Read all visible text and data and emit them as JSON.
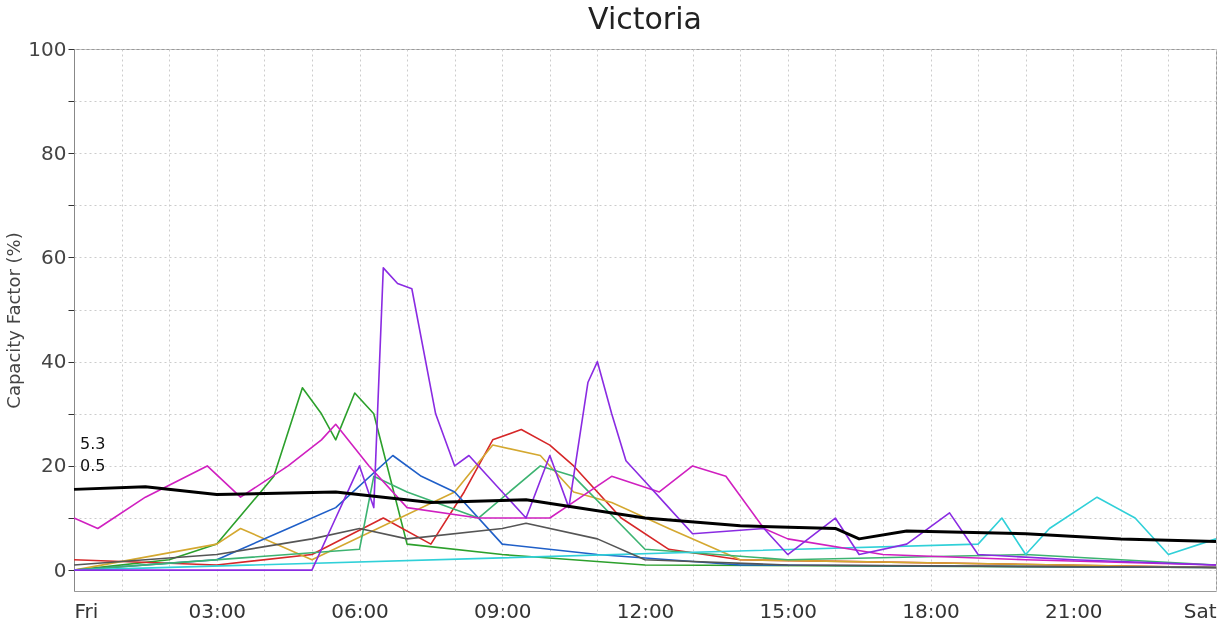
{
  "chart_data": {
    "type": "line",
    "title": "Victoria",
    "ylabel": "Capacity Factor (%)",
    "xlim": [
      0,
      24
    ],
    "xticks": [
      {
        "value": 0,
        "label": "Fri"
      },
      {
        "value": 1,
        "label": null
      },
      {
        "value": 2,
        "label": null
      },
      {
        "value": 3,
        "label": "03:00"
      },
      {
        "value": 4,
        "label": null
      },
      {
        "value": 5,
        "label": null
      },
      {
        "value": 6,
        "label": "06:00"
      },
      {
        "value": 7,
        "label": null
      },
      {
        "value": 8,
        "label": null
      },
      {
        "value": 9,
        "label": "09:00"
      },
      {
        "value": 10,
        "label": null
      },
      {
        "value": 11,
        "label": null
      },
      {
        "value": 12,
        "label": "12:00"
      },
      {
        "value": 13,
        "label": null
      },
      {
        "value": 14,
        "label": null
      },
      {
        "value": 15,
        "label": "15:00"
      },
      {
        "value": 16,
        "label": null
      },
      {
        "value": 17,
        "label": null
      },
      {
        "value": 18,
        "label": "18:00"
      },
      {
        "value": 19,
        "label": null
      },
      {
        "value": 20,
        "label": null
      },
      {
        "value": 21,
        "label": "21:00"
      },
      {
        "value": 22,
        "label": null
      },
      {
        "value": 23,
        "label": null
      },
      {
        "value": 24,
        "label": "Sat"
      }
    ],
    "ylim": [
      -4,
      100
    ],
    "yticks": [
      0,
      {
        "value": 10,
        "label": null
      },
      20,
      {
        "value": 30,
        "label": null
      },
      40,
      {
        "value": 50,
        "label": null
      },
      60,
      {
        "value": 70,
        "label": null
      },
      80,
      {
        "value": 90,
        "label": null
      },
      100
    ],
    "grid": true,
    "marker": "none",
    "line_style": "solid",
    "annotations": [
      "5.3",
      "0.5"
    ],
    "series": [
      {
        "color": "#2ca02c",
        "x": [
          0,
          2,
          3,
          4.2,
          4.8,
          5.2,
          5.5,
          5.9,
          6.3,
          7,
          9,
          12,
          24
        ],
        "values": [
          0,
          2,
          5,
          18,
          35,
          30,
          25,
          34,
          30,
          5,
          3,
          1,
          0.5
        ]
      },
      {
        "color": "#d62728",
        "x": [
          0,
          3,
          5,
          6.5,
          7.5,
          8.2,
          8.8,
          9.4,
          10,
          10.5,
          11.5,
          12.5,
          14,
          24
        ],
        "values": [
          2,
          1,
          3,
          10,
          5,
          15,
          25,
          27,
          24,
          20,
          10,
          4,
          2,
          0.5
        ]
      },
      {
        "color": "#d4a830",
        "x": [
          0,
          3,
          3.5,
          5,
          8,
          8.8,
          9.8,
          10.5,
          11.3,
          12.5,
          14,
          24
        ],
        "values": [
          0,
          5,
          8,
          2,
          15,
          24,
          22,
          15,
          13,
          8,
          2,
          0.5
        ]
      },
      {
        "color": "#1f5fc8",
        "x": [
          0,
          3,
          4.5,
          5.5,
          6.7,
          7.3,
          8,
          9,
          11,
          14,
          24
        ],
        "values": [
          0,
          2,
          8,
          12,
          22,
          18,
          15,
          5,
          3,
          1,
          0.5
        ]
      },
      {
        "color": "#3cb371",
        "x": [
          0,
          6,
          6.3,
          7,
          8.5,
          9.8,
          10.5,
          12,
          15,
          20,
          24
        ],
        "values": [
          0,
          4,
          18,
          15,
          10,
          20,
          18,
          4,
          2,
          3,
          1
        ]
      },
      {
        "color": "#30d0d8",
        "x": [
          0,
          19,
          19.5,
          20,
          20.5,
          21.5,
          22.3,
          23,
          24
        ],
        "values": [
          0,
          5,
          10,
          3,
          8,
          14,
          10,
          3,
          6
        ]
      },
      {
        "color": "#555555",
        "x": [
          0,
          3,
          5,
          6,
          7,
          9,
          9.5,
          11,
          12,
          15,
          24
        ],
        "values": [
          1,
          3,
          6,
          8,
          6,
          8,
          9,
          6,
          2,
          1,
          0.5
        ]
      },
      {
        "color": "#d020c0",
        "x": [
          0,
          0.5,
          1.5,
          2.8,
          3.5,
          4.5,
          5.2,
          5.5,
          6.2,
          7,
          8.5,
          10,
          11.3,
          12.3,
          13,
          13.7,
          14.5,
          15,
          17,
          20,
          24
        ],
        "values": [
          10,
          8,
          14,
          20,
          14,
          20,
          25,
          28,
          20,
          12,
          10,
          10,
          18,
          15,
          20,
          18,
          8,
          6,
          3,
          2,
          1
        ]
      },
      {
        "color": "#8a2be2",
        "x": [
          0,
          5,
          5.5,
          6,
          6.3,
          6.5,
          6.8,
          7.1,
          7.6,
          8,
          8.3,
          9,
          9.5,
          10,
          10.4,
          10.8,
          11,
          11.3,
          11.6,
          12,
          12.5,
          13,
          14.5,
          15,
          16,
          16.5,
          17.5,
          18.4,
          19,
          21,
          24
        ],
        "values": [
          0,
          0,
          10,
          20,
          12,
          58,
          55,
          54,
          30,
          20,
          22,
          15,
          10,
          22,
          12,
          36,
          40,
          30,
          21,
          17,
          12,
          7,
          8,
          3,
          10,
          3,
          5,
          11,
          3,
          2,
          1
        ]
      },
      {
        "color": "#000000",
        "x": [
          0,
          1.5,
          3,
          5.5,
          7.5,
          9.5,
          12,
          14,
          16,
          16.5,
          17.5,
          20,
          22,
          24
        ],
        "values": [
          15.5,
          16,
          14.5,
          15,
          13,
          13.5,
          10,
          8.5,
          8,
          6,
          7.5,
          7,
          6,
          5.5
        ]
      }
    ]
  }
}
